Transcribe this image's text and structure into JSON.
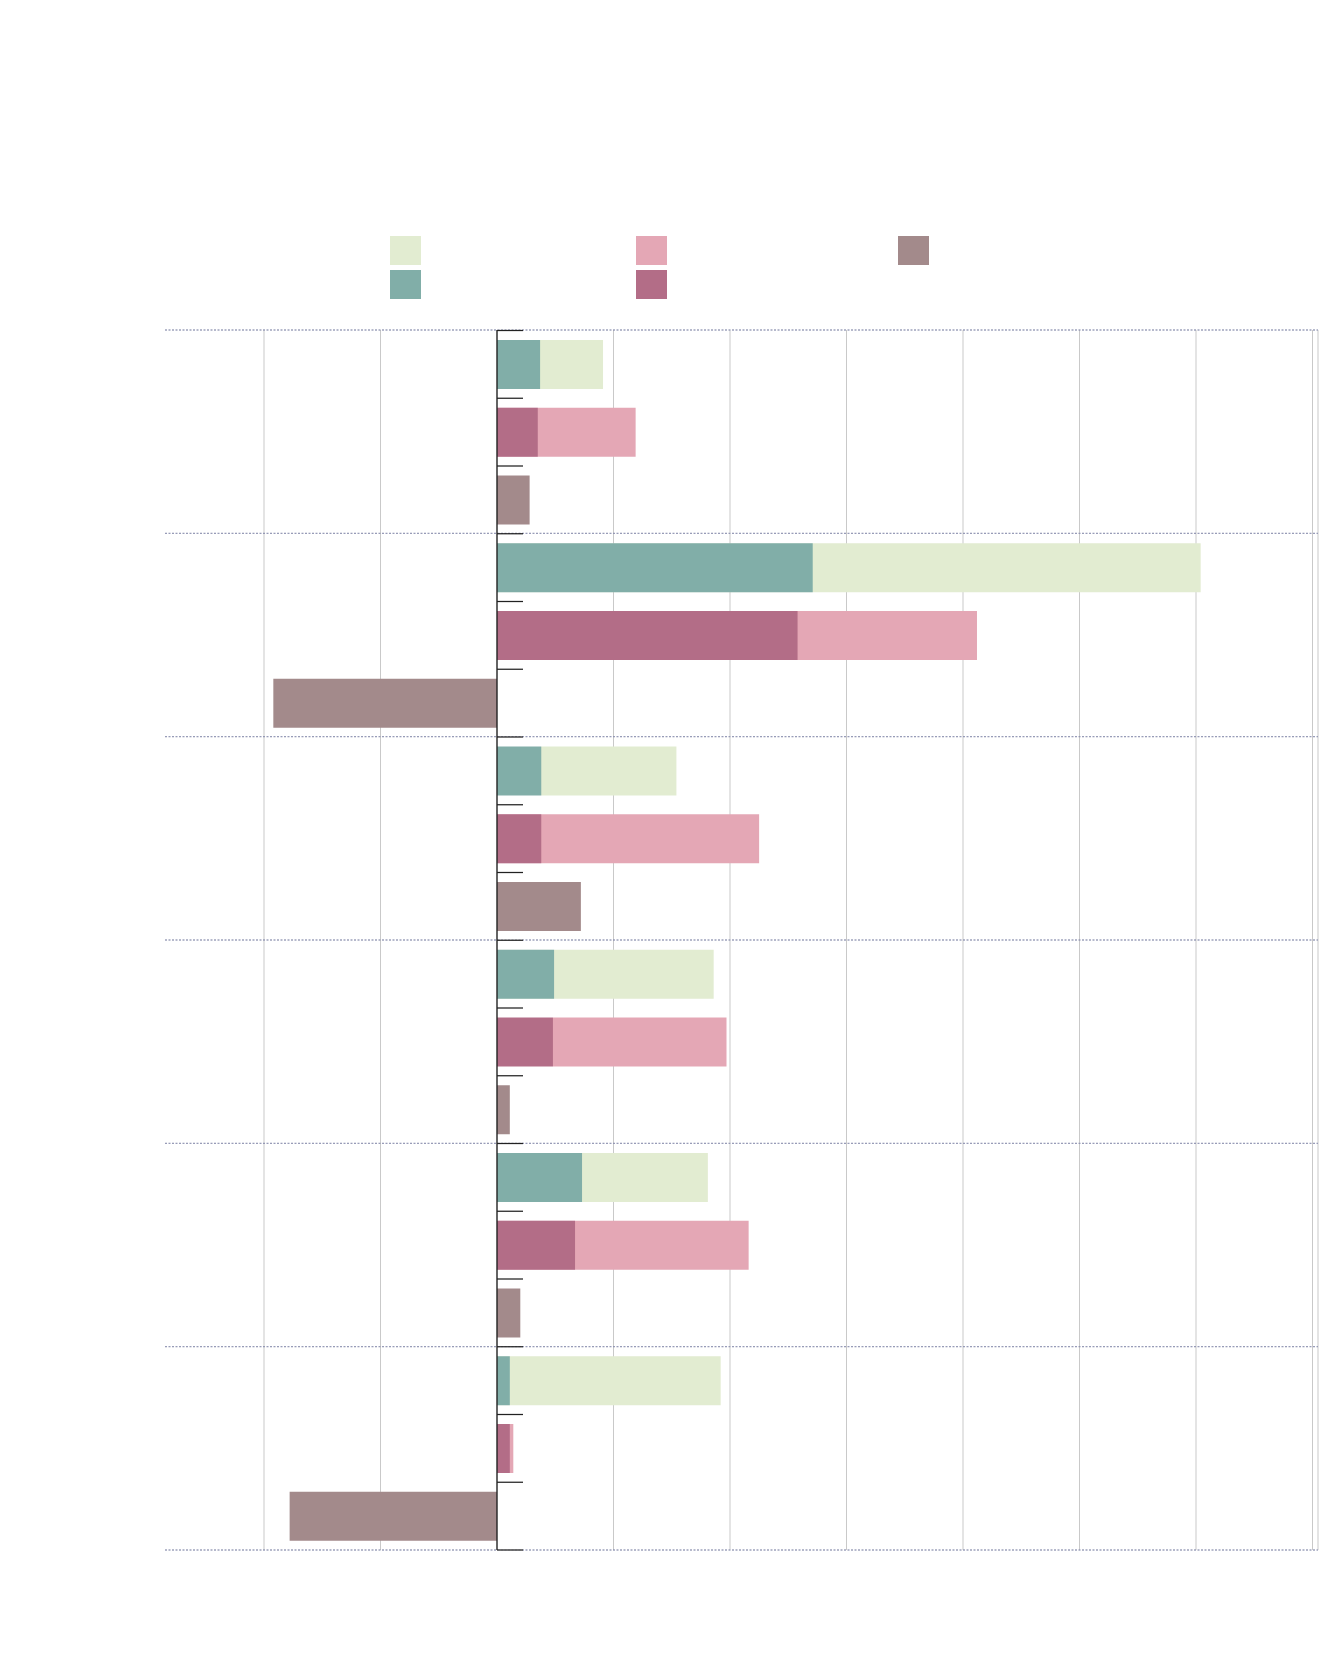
{
  "chart_data": {
    "type": "bar",
    "orientation": "horizontal",
    "layout": "grouped-overlay",
    "title": "",
    "xlabel": "",
    "ylabel": "",
    "xlim": [
      -2.85,
      7.0
    ],
    "gridlines_x": [
      -2,
      -1,
      0,
      1,
      2,
      3,
      4,
      5,
      6,
      7
    ],
    "grid": true,
    "categories": [
      "",
      "",
      "",
      "",
      "",
      ""
    ],
    "groups": [
      {
        "light": 0.91,
        "dark": 0.37,
        "palette": "green"
      },
      {
        "light": 1.19,
        "dark": 0.35,
        "palette": "pink"
      },
      {
        "light": null,
        "dark": 0.28,
        "palette": "brown"
      },
      {
        "light": 6.04,
        "dark": 2.71,
        "palette": "green"
      },
      {
        "light": 4.12,
        "dark": 2.58,
        "palette": "pink"
      },
      {
        "light": null,
        "dark": -1.92,
        "palette": "brown"
      },
      {
        "light": 1.54,
        "dark": 0.38,
        "palette": "green"
      },
      {
        "light": 2.25,
        "dark": 0.38,
        "palette": "pink"
      },
      {
        "light": null,
        "dark": 0.72,
        "palette": "brown"
      },
      {
        "light": 1.86,
        "dark": 0.49,
        "palette": "green"
      },
      {
        "light": 1.97,
        "dark": 0.48,
        "palette": "pink"
      },
      {
        "light": null,
        "dark": 0.11,
        "palette": "brown"
      },
      {
        "light": 1.81,
        "dark": 0.73,
        "palette": "green"
      },
      {
        "light": 2.16,
        "dark": 0.67,
        "palette": "pink"
      },
      {
        "light": null,
        "dark": 0.2,
        "palette": "brown"
      },
      {
        "light": 1.92,
        "dark": 0.11,
        "palette": "green"
      },
      {
        "light": 0.14,
        "dark": 0.11,
        "palette": "pink"
      },
      {
        "light": null,
        "dark": -1.78,
        "palette": "brown"
      }
    ],
    "legend": {
      "placement": "top",
      "entries": [
        {
          "name": "",
          "color": "#e2ecd1"
        },
        {
          "name": "",
          "color": "#81aea8"
        },
        {
          "name": "",
          "color": "#e4a7b5"
        },
        {
          "name": "",
          "color": "#b36d87"
        },
        {
          "name": "",
          "color": "#a38a8b"
        }
      ]
    },
    "colors": {
      "green_light": "#e2ecd1",
      "green_dark": "#81aea8",
      "pink_light": "#e4a7b5",
      "pink_dark": "#b36d87",
      "brown_dark": "#a38a8b",
      "grid_vertical": "#c9c9c9",
      "grid_horizontal": "#8a8fae",
      "axis": "#222222"
    }
  }
}
